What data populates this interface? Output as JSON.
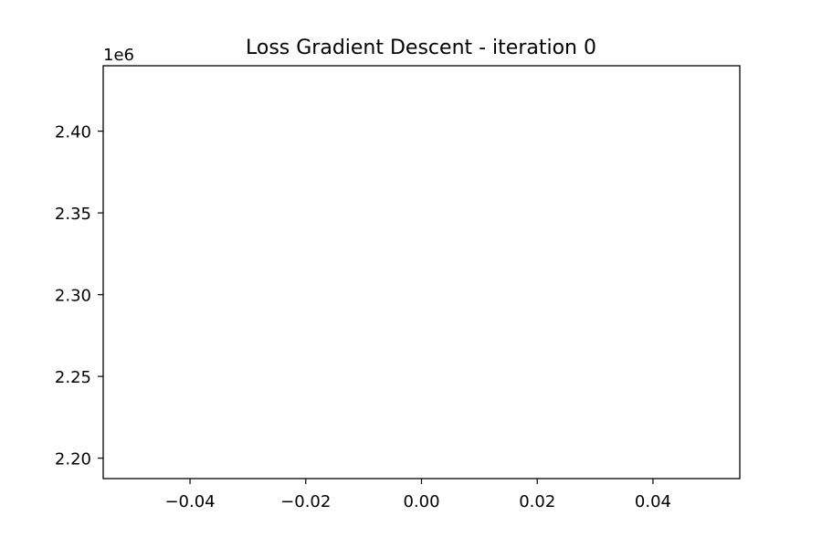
{
  "chart_data": {
    "type": "line",
    "title": "Loss Gradient Descent - iteration 0",
    "xlabel": "",
    "ylabel": "",
    "x": [],
    "series": [
      {
        "values": []
      }
    ],
    "xlim": [
      -0.055,
      0.055
    ],
    "ylim": [
      2187500,
      2440000
    ],
    "y_offset_label": "1e6",
    "x_ticks": [
      {
        "value": -0.04,
        "label": "−0.04"
      },
      {
        "value": -0.02,
        "label": "−0.02"
      },
      {
        "value": 0.0,
        "label": "0.00"
      },
      {
        "value": 0.02,
        "label": "0.02"
      },
      {
        "value": 0.04,
        "label": "0.04"
      }
    ],
    "y_ticks": [
      {
        "value": 2200000,
        "label": "2.20"
      },
      {
        "value": 2250000,
        "label": "2.25"
      },
      {
        "value": 2300000,
        "label": "2.30"
      },
      {
        "value": 2350000,
        "label": "2.35"
      },
      {
        "value": 2400000,
        "label": "2.40"
      }
    ],
    "grid": false,
    "legend": "none"
  }
}
